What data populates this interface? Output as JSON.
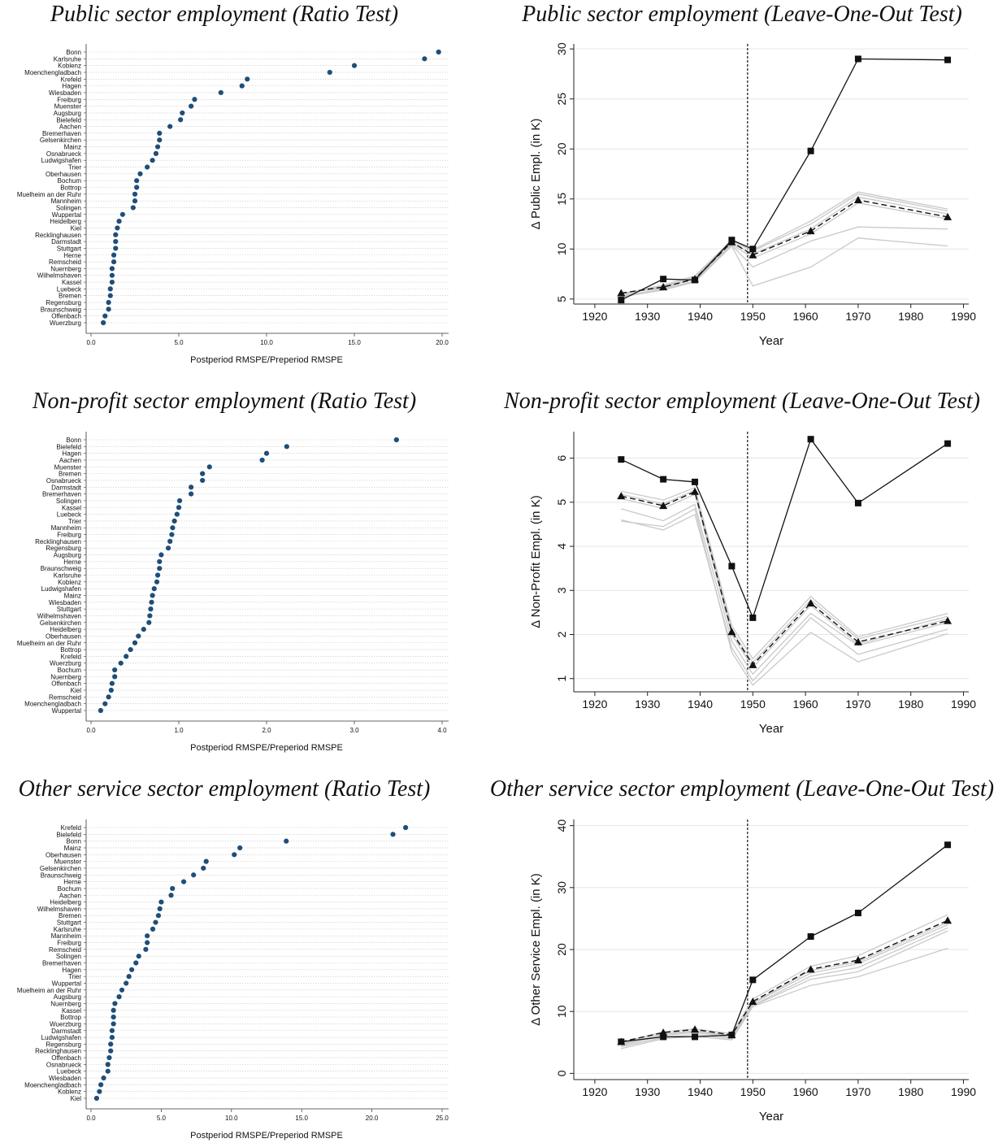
{
  "chart_data": [
    {
      "type": "scatter",
      "panel": "ratio-public",
      "title": "Public sector employment (Ratio Test)",
      "xlabel": "Postperiod RMSPE/Preperiod RMSPE",
      "xlim": [
        0,
        20
      ],
      "xticks": [
        "0.0",
        "5.0",
        "10.0",
        "15.0",
        "20.0"
      ],
      "cities": [
        "Bonn",
        "Karlsruhe",
        "Koblenz",
        "Moenchengladbach",
        "Krefeld",
        "Hagen",
        "Wiesbaden",
        "Freiburg",
        "Muenster",
        "Augsburg",
        "Bielefeld",
        "Aachen",
        "Bremerhaven",
        "Gelsenkirchen",
        "Mainz",
        "Osnabrueck",
        "Ludwigshafen",
        "Trier",
        "Oberhausen",
        "Bochum",
        "Bottrop",
        "Muelheim an der Ruhr",
        "Mannheim",
        "Solingen",
        "Wuppertal",
        "Heidelberg",
        "Kiel",
        "Recklinghausen",
        "Darmstadt",
        "Stuttgart",
        "Herne",
        "Remscheid",
        "Nuernberg",
        "Wilhelmshaven",
        "Kassel",
        "Luebeck",
        "Bremen",
        "Regensburg",
        "Braunschweig",
        "Offenbach",
        "Wuerzburg"
      ],
      "values": [
        19.8,
        19.0,
        15.0,
        13.6,
        8.9,
        8.6,
        7.4,
        5.9,
        5.7,
        5.2,
        5.1,
        4.5,
        3.9,
        3.9,
        3.8,
        3.7,
        3.5,
        3.2,
        2.8,
        2.6,
        2.6,
        2.5,
        2.5,
        2.4,
        1.8,
        1.6,
        1.5,
        1.4,
        1.4,
        1.4,
        1.3,
        1.3,
        1.2,
        1.2,
        1.2,
        1.1,
        1.1,
        1.0,
        1.0,
        0.8,
        0.7
      ]
    },
    {
      "type": "line",
      "panel": "loo-public",
      "title": "Public sector employment (Leave-One-Out Test)",
      "xlabel": "Year",
      "ylabel": "Δ Public Empl. (in K)",
      "xlim": [
        1916,
        1991
      ],
      "ylim": [
        4.5,
        30.5
      ],
      "xticks": [
        1920,
        1930,
        1940,
        1950,
        1960,
        1970,
        1980,
        1990
      ],
      "yticks": [
        5,
        10,
        15,
        20,
        25,
        30
      ],
      "vline": 1949,
      "x": [
        1925,
        1933,
        1939,
        1946,
        1950,
        1961,
        1970,
        1987
      ],
      "actual": [
        4.9,
        7.0,
        6.9,
        10.9,
        10.0,
        19.8,
        29.0,
        28.9
      ],
      "synthetic": [
        5.6,
        6.2,
        7.0,
        10.7,
        9.4,
        11.8,
        14.9,
        13.2
      ],
      "leave_one_out": [
        [
          5.5,
          6.2,
          7.2,
          10.8,
          9.8,
          12.5,
          15.5,
          13.8
        ],
        [
          5.4,
          6.3,
          7.1,
          10.6,
          9.5,
          12.0,
          15.2,
          13.5
        ],
        [
          5.6,
          6.1,
          7.0,
          10.5,
          9.1,
          11.5,
          14.6,
          13.0
        ],
        [
          5.5,
          6.4,
          7.3,
          10.9,
          9.9,
          12.8,
          15.7,
          14.0
        ],
        [
          5.3,
          6.0,
          6.8,
          10.4,
          8.2,
          10.8,
          12.2,
          12.0
        ],
        [
          5.2,
          5.9,
          6.7,
          10.3,
          6.3,
          8.2,
          11.1,
          10.3
        ]
      ]
    },
    {
      "type": "scatter",
      "panel": "ratio-nonprofit",
      "title": "Non-profit sector employment (Ratio Test)",
      "xlabel": "Postperiod RMSPE/Preperiod RMSPE",
      "xlim": [
        0,
        4
      ],
      "xticks": [
        "0.0",
        "1.0",
        "2.0",
        "3.0",
        "4.0"
      ],
      "cities": [
        "Bonn",
        "Bielefeld",
        "Hagen",
        "Aachen",
        "Muenster",
        "Bremen",
        "Osnabrueck",
        "Darmstadt",
        "Bremerhaven",
        "Solingen",
        "Kassel",
        "Luebeck",
        "Trier",
        "Mannheim",
        "Freiburg",
        "Recklinghausen",
        "Regensburg",
        "Augsburg",
        "Herne",
        "Braunschweig",
        "Karlsruhe",
        "Koblenz",
        "Ludwigshafen",
        "Mainz",
        "Wiesbaden",
        "Stuttgart",
        "Wilhelmshaven",
        "Gelsenkirchen",
        "Heidelberg",
        "Oberhausen",
        "Muelheim an der Ruhr",
        "Bottrop",
        "Krefeld",
        "Wuerzburg",
        "Bochum",
        "Nuernberg",
        "Offenbach",
        "Kiel",
        "Remscheid",
        "Moenchengladbach",
        "Wuppertal"
      ],
      "values": [
        3.48,
        2.23,
        2.0,
        1.95,
        1.35,
        1.27,
        1.27,
        1.14,
        1.14,
        1.01,
        1.0,
        0.98,
        0.95,
        0.93,
        0.92,
        0.9,
        0.88,
        0.8,
        0.78,
        0.78,
        0.76,
        0.75,
        0.72,
        0.7,
        0.69,
        0.68,
        0.67,
        0.66,
        0.6,
        0.54,
        0.5,
        0.45,
        0.4,
        0.34,
        0.27,
        0.27,
        0.24,
        0.23,
        0.2,
        0.16,
        0.11
      ]
    },
    {
      "type": "line",
      "panel": "loo-nonprofit",
      "title": "Non-profit sector employment (Leave-One-Out Test)",
      "xlabel": "Year",
      "ylabel": "Δ Non-Profit Empl. (in K)",
      "xlim": [
        1916,
        1991
      ],
      "ylim": [
        0.7,
        6.6
      ],
      "xticks": [
        1920,
        1930,
        1940,
        1950,
        1960,
        1970,
        1980,
        1990
      ],
      "yticks": [
        1,
        2,
        3,
        4,
        5,
        6
      ],
      "vline": 1949,
      "x": [
        1925,
        1933,
        1939,
        1946,
        1950,
        1961,
        1970,
        1987
      ],
      "actual": [
        5.97,
        5.52,
        5.46,
        3.55,
        2.38,
        6.43,
        4.98,
        6.33
      ],
      "synthetic": [
        5.14,
        4.92,
        5.24,
        2.06,
        1.31,
        2.71,
        1.83,
        2.31
      ],
      "leave_one_out": [
        [
          5.25,
          5.05,
          5.33,
          2.2,
          1.45,
          2.86,
          1.95,
          2.48
        ],
        [
          5.18,
          4.96,
          5.27,
          2.1,
          1.36,
          2.78,
          1.9,
          2.41
        ],
        [
          5.08,
          4.86,
          5.18,
          2.0,
          1.25,
          2.66,
          1.78,
          2.36
        ],
        [
          4.85,
          4.58,
          4.95,
          1.85,
          1.1,
          2.48,
          1.75,
          2.27
        ],
        [
          4.6,
          4.37,
          4.72,
          1.7,
          0.95,
          2.38,
          1.55,
          2.12
        ],
        [
          4.57,
          4.45,
          4.85,
          1.6,
          0.85,
          2.05,
          1.38,
          2.02
        ]
      ]
    },
    {
      "type": "scatter",
      "panel": "ratio-other",
      "title": "Other service sector employment (Ratio Test)",
      "xlabel": "Postperiod RMSPE/Preperiod RMSPE",
      "xlim": [
        0,
        25
      ],
      "xticks": [
        "0.0",
        "5.0",
        "10.0",
        "15.0",
        "20.0",
        "25.0"
      ],
      "cities": [
        "Krefeld",
        "Bielefeld",
        "Bonn",
        "Mainz",
        "Oberhausen",
        "Muenster",
        "Gelsenkirchen",
        "Braunschweig",
        "Herne",
        "Bochum",
        "Aachen",
        "Heidelberg",
        "Wilhelmshaven",
        "Bremen",
        "Stuttgart",
        "Karlsruhe",
        "Mannheim",
        "Freiburg",
        "Remscheid",
        "Solingen",
        "Bremerhaven",
        "Hagen",
        "Trier",
        "Wuppertal",
        "Muelheim an der Ruhr",
        "Augsburg",
        "Nuernberg",
        "Kassel",
        "Bottrop",
        "Wuerzburg",
        "Darmstadt",
        "Ludwigshafen",
        "Regensburg",
        "Recklinghausen",
        "Offenbach",
        "Osnabrueck",
        "Luebeck",
        "Wiesbaden",
        "Moenchengladbach",
        "Koblenz",
        "Kiel"
      ],
      "values": [
        22.4,
        21.5,
        13.9,
        10.6,
        10.2,
        8.2,
        8.0,
        7.3,
        6.6,
        5.8,
        5.7,
        5.0,
        4.9,
        4.8,
        4.6,
        4.4,
        4.0,
        4.0,
        3.9,
        3.4,
        3.2,
        2.9,
        2.7,
        2.5,
        2.2,
        2.0,
        1.7,
        1.6,
        1.6,
        1.6,
        1.5,
        1.5,
        1.4,
        1.4,
        1.3,
        1.2,
        1.2,
        0.9,
        0.7,
        0.6,
        0.4
      ]
    },
    {
      "type": "line",
      "panel": "loo-other",
      "title": "Other service sector employment (Leave-One-Out Test)",
      "xlabel": "Year",
      "ylabel": "Δ Other Service Empl. (in K)",
      "xlim": [
        1916,
        1991
      ],
      "ylim": [
        -1,
        41
      ],
      "xticks": [
        1920,
        1930,
        1940,
        1950,
        1960,
        1970,
        1980,
        1990
      ],
      "yticks": [
        0,
        10,
        20,
        30,
        40
      ],
      "vline": 1949,
      "x": [
        1925,
        1933,
        1939,
        1946,
        1950,
        1961,
        1970,
        1987
      ],
      "actual": [
        5.1,
        5.9,
        5.9,
        6.2,
        15.1,
        22.1,
        25.9,
        36.9
      ],
      "synthetic": [
        5.1,
        6.6,
        7.1,
        6.2,
        11.6,
        16.8,
        18.3,
        24.7
      ],
      "leave_one_out": [
        [
          5.0,
          6.7,
          7.2,
          6.4,
          12.0,
          17.3,
          19.0,
          25.6
        ],
        [
          4.8,
          6.4,
          6.9,
          6.1,
          11.4,
          16.6,
          18.0,
          24.4
        ],
        [
          4.7,
          6.3,
          6.8,
          6.0,
          11.3,
          16.2,
          17.7,
          24.0
        ],
        [
          4.5,
          6.1,
          6.6,
          5.8,
          11.0,
          15.7,
          17.1,
          23.5
        ],
        [
          4.3,
          5.8,
          6.3,
          5.6,
          10.9,
          15.2,
          16.4,
          23.0
        ],
        [
          4.0,
          5.6,
          6.0,
          5.4,
          10.8,
          14.2,
          15.6,
          20.2
        ]
      ]
    }
  ]
}
